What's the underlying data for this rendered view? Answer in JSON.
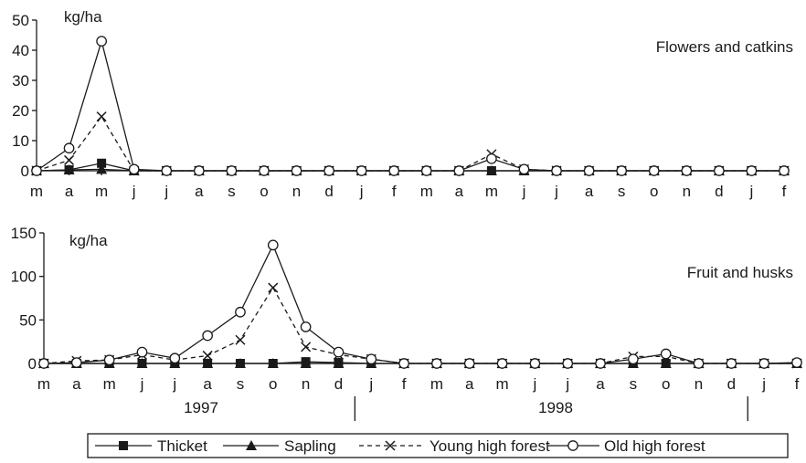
{
  "chart_data": [
    {
      "type": "line",
      "title": "Flowers and catkins",
      "unit": "kg/ha",
      "ylim": [
        0,
        50
      ],
      "yticks": [
        0,
        10,
        20,
        30,
        40,
        50
      ],
      "categories": [
        "m",
        "a",
        "m",
        "j",
        "j",
        "a",
        "s",
        "o",
        "n",
        "d",
        "j",
        "f",
        "m",
        "a",
        "m",
        "j",
        "j",
        "a",
        "s",
        "o",
        "n",
        "d",
        "j",
        "f"
      ],
      "series": [
        {
          "name": "Thicket",
          "values": [
            0,
            0.3,
            2.5,
            0,
            0,
            0,
            0,
            0,
            0,
            0,
            0,
            0,
            0,
            0,
            0,
            0,
            0,
            0,
            0,
            0,
            0,
            0,
            0,
            0
          ]
        },
        {
          "name": "Sapling",
          "values": [
            0,
            0.3,
            0.5,
            0,
            0,
            0,
            0,
            0,
            0,
            0,
            0,
            0,
            0,
            0,
            0,
            0,
            0,
            0,
            0,
            0,
            0,
            0,
            0,
            0
          ]
        },
        {
          "name": "Young high forest",
          "values": [
            0,
            3.5,
            18,
            0,
            0,
            0,
            0,
            0,
            0,
            0,
            0,
            0,
            0,
            0,
            5.5,
            0.5,
            0,
            0,
            0,
            0,
            0,
            0,
            0,
            0
          ]
        },
        {
          "name": "Old high forest",
          "values": [
            0,
            7.5,
            43,
            0.5,
            0,
            0,
            0,
            0,
            0,
            0,
            0,
            0,
            0,
            0,
            4,
            0.5,
            0,
            0,
            0,
            0,
            0,
            0,
            0,
            0
          ]
        }
      ]
    },
    {
      "type": "line",
      "title": "Fruit and husks",
      "unit": "kg/ha",
      "ylim": [
        0,
        150
      ],
      "yticks": [
        0,
        50,
        100,
        150
      ],
      "categories": [
        "m",
        "a",
        "m",
        "j",
        "j",
        "a",
        "s",
        "o",
        "n",
        "d",
        "j",
        "f",
        "m",
        "a",
        "m",
        "j",
        "j",
        "a",
        "s",
        "o",
        "n",
        "d",
        "j",
        "f"
      ],
      "years": [
        "1997",
        "1998"
      ],
      "series": [
        {
          "name": "Thicket",
          "values": [
            0,
            0,
            0,
            0,
            0,
            0,
            0,
            0,
            2,
            1,
            0,
            0,
            0,
            0,
            0,
            0,
            0,
            0,
            0,
            0,
            0,
            0,
            0,
            0
          ]
        },
        {
          "name": "Sapling",
          "values": [
            0,
            0,
            0,
            0,
            0,
            0,
            0,
            0,
            0,
            0,
            0,
            0,
            0,
            0,
            0,
            0,
            0,
            0,
            0,
            0,
            0,
            0,
            0,
            0
          ]
        },
        {
          "name": "Young high forest",
          "values": [
            0,
            3,
            4,
            10,
            4,
            9,
            27,
            87,
            19,
            10,
            5,
            0,
            0,
            0,
            0,
            0,
            0,
            0,
            8,
            8,
            0,
            0,
            0,
            0
          ]
        },
        {
          "name": "Old high forest",
          "values": [
            0,
            1,
            4,
            13,
            6,
            32,
            59,
            136,
            42,
            13,
            5,
            0,
            0,
            0,
            0,
            0,
            0,
            0,
            5,
            11,
            0,
            0,
            0,
            1
          ]
        }
      ]
    }
  ],
  "legend": {
    "items": [
      {
        "label": "Thicket",
        "marker": "filled-square",
        "dash": "solid"
      },
      {
        "label": "Sapling",
        "marker": "filled-triangle",
        "dash": "solid"
      },
      {
        "label": "Young high forest",
        "marker": "cross",
        "dash": "dashed"
      },
      {
        "label": "Old high forest",
        "marker": "open-circle",
        "dash": "solid"
      }
    ]
  },
  "colors": {
    "ink": "#1a1a1a",
    "background": "#ffffff"
  }
}
